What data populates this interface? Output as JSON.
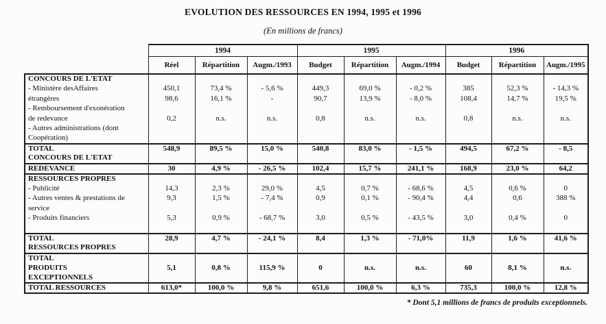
{
  "title": "EVOLUTION DES RESSOURCES EN 1994, 1995 et 1996",
  "subtitle": "(En millions de francs)",
  "footnote": "* Dont 5,1 millions de francs de produits exceptionnels.",
  "table": {
    "year_groups": [
      {
        "label": "1994",
        "columns": [
          "Réel",
          "Répartition",
          "Augm./1993"
        ]
      },
      {
        "label": "1995",
        "columns": [
          "Budget",
          "Répartition",
          "Augm./1994"
        ]
      },
      {
        "label": "1996",
        "columns": [
          "Budget",
          "Répartition",
          "Augm./1995"
        ]
      }
    ],
    "rows": [
      {
        "label": "CONCOURS DE L'ETAT",
        "bold": true,
        "values": []
      },
      {
        "label": "- Ministère desAffaires",
        "values": [
          "450,1",
          "73,4 %",
          "- 5,6 %",
          "449,3",
          "69,0 %",
          "- 0,2 %",
          "385",
          "52,3 %",
          "- 14,3 %"
        ]
      },
      {
        "label": "étrangères",
        "values": [
          "98,6",
          "16,1 %",
          "-",
          "90,7",
          "13,9 %",
          "- 8,0 %",
          "108,4",
          "14,7 %",
          "19,5 %"
        ]
      },
      {
        "label": "- Remboursement d'exonération",
        "values": []
      },
      {
        "label": "de redevance",
        "values": [
          "0,2",
          "n.s.",
          "n.s.",
          "0,8",
          "n.s.",
          "n.s.",
          "0,8",
          "n.s.",
          "n.s."
        ]
      },
      {
        "label": "- Autres administrations (dont",
        "values": []
      },
      {
        "label": "Coopération)",
        "values": []
      },
      {
        "label": "TOTAL",
        "bold": true,
        "sep_above": true,
        "values": [
          "548,9",
          "89,5 %",
          "15,0 %",
          "540,8",
          "83,0 %",
          "- 1,5 %",
          "494,5",
          "67,2 %",
          "- 8,5"
        ]
      },
      {
        "label": "CONCOURS DE L'ETAT",
        "bold": true,
        "values": []
      },
      {
        "label": "REDEVANCE",
        "bold": true,
        "sep_above": true,
        "values": [
          "30",
          "4,9 %",
          "- 26,5 %",
          "102,4",
          "15,7 %",
          "241,1 %",
          "168,9",
          "23,0 %",
          "64,2"
        ]
      },
      {
        "label": "RESSOURCES PROPRES",
        "bold": true,
        "sep_above": true,
        "values": []
      },
      {
        "label": "- Publicité",
        "values": [
          "14,3",
          "2,3 %",
          "29,0 %",
          "4,5",
          "0,7 %",
          "- 68,6 %",
          "4,5",
          "0,6 %",
          "0"
        ]
      },
      {
        "label": "- Autres ventes & prestations de",
        "values": [
          "9,3",
          "1,5 %",
          "- 7,4 %",
          "0,9",
          "0,1 %",
          "- 90,4 %",
          "4,4",
          "0,6",
          "388 %"
        ]
      },
      {
        "label": "service",
        "values": []
      },
      {
        "label": "- Produits financiers",
        "values": [
          "5,3",
          "0,9 %",
          "- 68,7 %",
          "3,0",
          "0,5 %",
          "- 43,5 %",
          "3,0",
          "0,4 %",
          "0"
        ]
      },
      {
        "label": "",
        "values": []
      },
      {
        "label": "TOTAL",
        "bold": true,
        "sep_above": true,
        "values": [
          "28,9",
          "4,7 %",
          "- 24,1 %",
          "8,4",
          "1,3 %",
          "- 71,0%",
          "11,9",
          "1,6 %",
          "41,6 %"
        ]
      },
      {
        "label": "RESSOURCES PROPRES",
        "bold": true,
        "values": []
      },
      {
        "label": "TOTAL",
        "bold": true,
        "sep_above": true,
        "values": []
      },
      {
        "label": "PRODUITS",
        "bold": true,
        "values": [
          "5,1",
          "0,8 %",
          "115,9 %",
          "0",
          "n.s.",
          "n.s.",
          "60",
          "8,1 %",
          "n.s."
        ]
      },
      {
        "label": "EXCEPTIONNELS",
        "bold": true,
        "values": []
      },
      {
        "label": "TOTAL RESSOURCES",
        "bold": true,
        "sep_above": true,
        "values": [
          "613,0*",
          "100,0 %",
          "9,8 %",
          "651,6",
          "100,0 %",
          "6,3 %",
          "735,3",
          "100,0 %",
          "12,8 %"
        ]
      }
    ]
  }
}
